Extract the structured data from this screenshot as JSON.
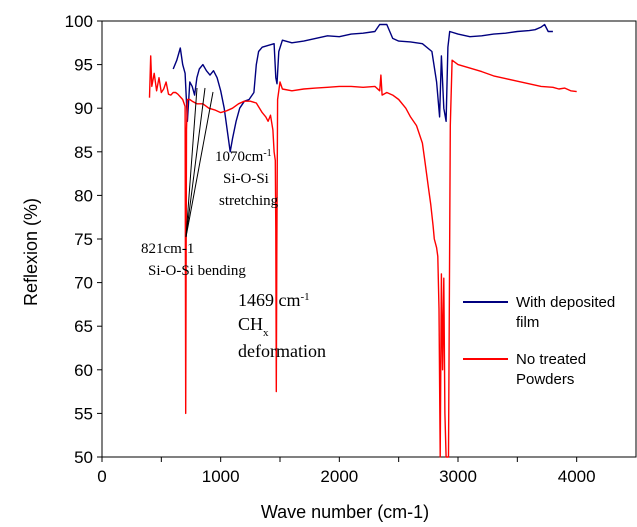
{
  "chart_data": {
    "type": "line",
    "xlabel": "Wave number (cm-1)",
    "ylabel": "Reflexion (%)",
    "xlim": [
      0,
      4500
    ],
    "ylim": [
      50,
      100
    ],
    "xticks": [
      "0",
      "1000",
      "2000",
      "3000",
      "4000"
    ],
    "yticks": [
      "50",
      "55",
      "60",
      "65",
      "70",
      "75",
      "80",
      "85",
      "90",
      "95",
      "100"
    ],
    "grid": false,
    "legend_position": "right",
    "series": [
      {
        "name": "With deposited film",
        "color": "#00007f",
        "points": [
          [
            600,
            94.5
          ],
          [
            630,
            95.5
          ],
          [
            660,
            96.9
          ],
          [
            680,
            95.0
          ],
          [
            700,
            94.0
          ],
          [
            720,
            88.5
          ],
          [
            740,
            93.0
          ],
          [
            760,
            92.5
          ],
          [
            780,
            91.5
          ],
          [
            800,
            93.5
          ],
          [
            820,
            94.5
          ],
          [
            850,
            95.0
          ],
          [
            880,
            94.3
          ],
          [
            910,
            93.8
          ],
          [
            940,
            94.3
          ],
          [
            970,
            93.5
          ],
          [
            1000,
            92.0
          ],
          [
            1030,
            90.0
          ],
          [
            1060,
            87.0
          ],
          [
            1080,
            85.0
          ],
          [
            1100,
            86.5
          ],
          [
            1130,
            88.5
          ],
          [
            1160,
            90.0
          ],
          [
            1200,
            90.8
          ],
          [
            1240,
            91.0
          ],
          [
            1280,
            91.8
          ],
          [
            1300,
            95.0
          ],
          [
            1320,
            96.5
          ],
          [
            1350,
            97.0
          ],
          [
            1400,
            97.2
          ],
          [
            1450,
            97.4
          ],
          [
            1465,
            93.5
          ],
          [
            1475,
            92.8
          ],
          [
            1490,
            96.5
          ],
          [
            1520,
            97.8
          ],
          [
            1600,
            97.5
          ],
          [
            1700,
            97.7
          ],
          [
            1800,
            98.0
          ],
          [
            1900,
            98.3
          ],
          [
            2000,
            98.2
          ],
          [
            2100,
            98.5
          ],
          [
            2200,
            98.6
          ],
          [
            2300,
            98.8
          ],
          [
            2340,
            99.6
          ],
          [
            2400,
            99.6
          ],
          [
            2450,
            98.0
          ],
          [
            2500,
            97.7
          ],
          [
            2600,
            97.6
          ],
          [
            2700,
            97.4
          ],
          [
            2780,
            96.5
          ],
          [
            2820,
            93.0
          ],
          [
            2845,
            89.0
          ],
          [
            2860,
            96.0
          ],
          [
            2880,
            90.0
          ],
          [
            2900,
            88.5
          ],
          [
            2915,
            97.0
          ],
          [
            2930,
            98.8
          ],
          [
            3000,
            98.5
          ],
          [
            3100,
            98.2
          ],
          [
            3200,
            98.3
          ],
          [
            3300,
            98.5
          ],
          [
            3400,
            98.6
          ],
          [
            3500,
            98.8
          ],
          [
            3600,
            98.9
          ],
          [
            3650,
            99.0
          ],
          [
            3700,
            99.3
          ],
          [
            3730,
            99.6
          ],
          [
            3760,
            98.8
          ],
          [
            3800,
            98.8
          ]
        ]
      },
      {
        "name": "No treated Powders",
        "color": "#ff0000",
        "points": [
          [
            400,
            91.2
          ],
          [
            410,
            96.0
          ],
          [
            420,
            92.5
          ],
          [
            440,
            94.0
          ],
          [
            460,
            92.0
          ],
          [
            480,
            93.5
          ],
          [
            500,
            91.8
          ],
          [
            520,
            92.2
          ],
          [
            540,
            93.0
          ],
          [
            560,
            91.6
          ],
          [
            580,
            91.5
          ],
          [
            600,
            91.8
          ],
          [
            620,
            91.8
          ],
          [
            640,
            91.6
          ],
          [
            660,
            91.3
          ],
          [
            680,
            91.0
          ],
          [
            700,
            90.2
          ],
          [
            705,
            55.0
          ],
          [
            712,
            87.5
          ],
          [
            720,
            91.0
          ],
          [
            740,
            91.0
          ],
          [
            760,
            90.8
          ],
          [
            800,
            90.5
          ],
          [
            850,
            90.5
          ],
          [
            900,
            90.0
          ],
          [
            950,
            89.8
          ],
          [
            1000,
            89.5
          ],
          [
            1050,
            89.7
          ],
          [
            1100,
            90.0
          ],
          [
            1150,
            90.5
          ],
          [
            1200,
            90.8
          ],
          [
            1250,
            90.8
          ],
          [
            1300,
            90.6
          ],
          [
            1350,
            89.5
          ],
          [
            1380,
            89.0
          ],
          [
            1400,
            88.5
          ],
          [
            1420,
            89.2
          ],
          [
            1440,
            87.5
          ],
          [
            1450,
            85.0
          ],
          [
            1460,
            84.0
          ],
          [
            1465,
            76.0
          ],
          [
            1469,
            57.5
          ],
          [
            1473,
            73.0
          ],
          [
            1480,
            91.0
          ],
          [
            1500,
            93.0
          ],
          [
            1520,
            92.2
          ],
          [
            1600,
            92.0
          ],
          [
            1700,
            92.2
          ],
          [
            1800,
            92.3
          ],
          [
            1900,
            92.4
          ],
          [
            2000,
            92.5
          ],
          [
            2100,
            92.5
          ],
          [
            2200,
            92.4
          ],
          [
            2300,
            92.5
          ],
          [
            2340,
            92.0
          ],
          [
            2350,
            93.8
          ],
          [
            2360,
            91.5
          ],
          [
            2400,
            91.8
          ],
          [
            2450,
            91.5
          ],
          [
            2500,
            91.0
          ],
          [
            2560,
            90.0
          ],
          [
            2600,
            89.0
          ],
          [
            2650,
            88.0
          ],
          [
            2700,
            86.0
          ],
          [
            2720,
            84.0
          ],
          [
            2750,
            81.0
          ],
          [
            2770,
            79.0
          ],
          [
            2790,
            76.5
          ],
          [
            2800,
            75.0
          ],
          [
            2820,
            74.0
          ],
          [
            2830,
            73.0
          ],
          [
            2840,
            67.0
          ],
          [
            2850,
            50.0
          ],
          [
            2860,
            71.0
          ],
          [
            2870,
            60.0
          ],
          [
            2880,
            70.5
          ],
          [
            2890,
            55.0
          ],
          [
            2900,
            50.0
          ],
          [
            2920,
            50.0
          ],
          [
            2935,
            88.0
          ],
          [
            2950,
            95.5
          ],
          [
            3000,
            95.0
          ],
          [
            3100,
            94.6
          ],
          [
            3200,
            94.2
          ],
          [
            3300,
            93.7
          ],
          [
            3400,
            93.4
          ],
          [
            3500,
            93.1
          ],
          [
            3600,
            92.8
          ],
          [
            3700,
            92.5
          ],
          [
            3800,
            92.4
          ],
          [
            3850,
            92.2
          ],
          [
            3900,
            92.3
          ],
          [
            3950,
            92.0
          ],
          [
            4000,
            91.9
          ]
        ]
      }
    ],
    "annotations": [
      {
        "id": "a1070",
        "lines": [
          "1070cm",
          "Si-O-Si",
          "stretching"
        ],
        "sup": "-1"
      },
      {
        "id": "a821",
        "lines": [
          "821cm-1",
          "Si-O-Si bending"
        ]
      },
      {
        "id": "a1469",
        "lines": [
          "1469 cm",
          "CH",
          "deformation"
        ],
        "sup": "-1",
        "sub": "x"
      }
    ],
    "legend": [
      "With deposited",
      "film",
      "No treated",
      "Powders"
    ]
  }
}
